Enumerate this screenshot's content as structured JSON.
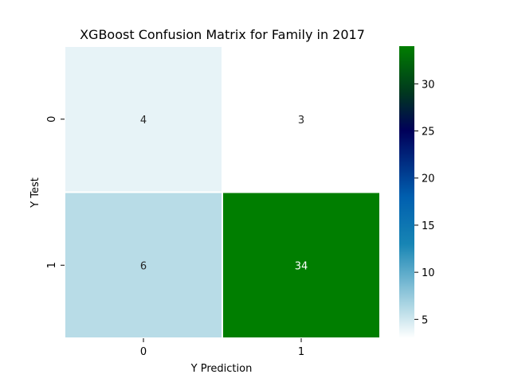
{
  "chart_data": {
    "type": "heatmap",
    "title": "XGBoost Confusion Matrix for Family in 2017",
    "xlabel": "Y Prediction",
    "ylabel": "Y Test",
    "x_categories": [
      "0",
      "1"
    ],
    "y_categories": [
      "0",
      "1"
    ],
    "values": [
      [
        4,
        3
      ],
      [
        6,
        34
      ]
    ],
    "colorbar": {
      "min": 3,
      "max": 34,
      "ticks": [
        5,
        10,
        15,
        20,
        25,
        30
      ],
      "tick_labels": [
        "5",
        "10",
        "15",
        "20",
        "25",
        "30"
      ],
      "colormap_stops": [
        {
          "value": 3,
          "color": "#ffffff"
        },
        {
          "value": 6,
          "color": "#b8dce7"
        },
        {
          "value": 13,
          "color": "#1785b4"
        },
        {
          "value": 18,
          "color": "#005faf"
        },
        {
          "value": 25,
          "color": "#00005a"
        },
        {
          "value": 29,
          "color": "#00371f"
        },
        {
          "value": 34,
          "color": "#007e00"
        }
      ]
    },
    "annotation_colors": {
      "dark": "#262626",
      "light": "#ffffff"
    },
    "grid": false
  }
}
